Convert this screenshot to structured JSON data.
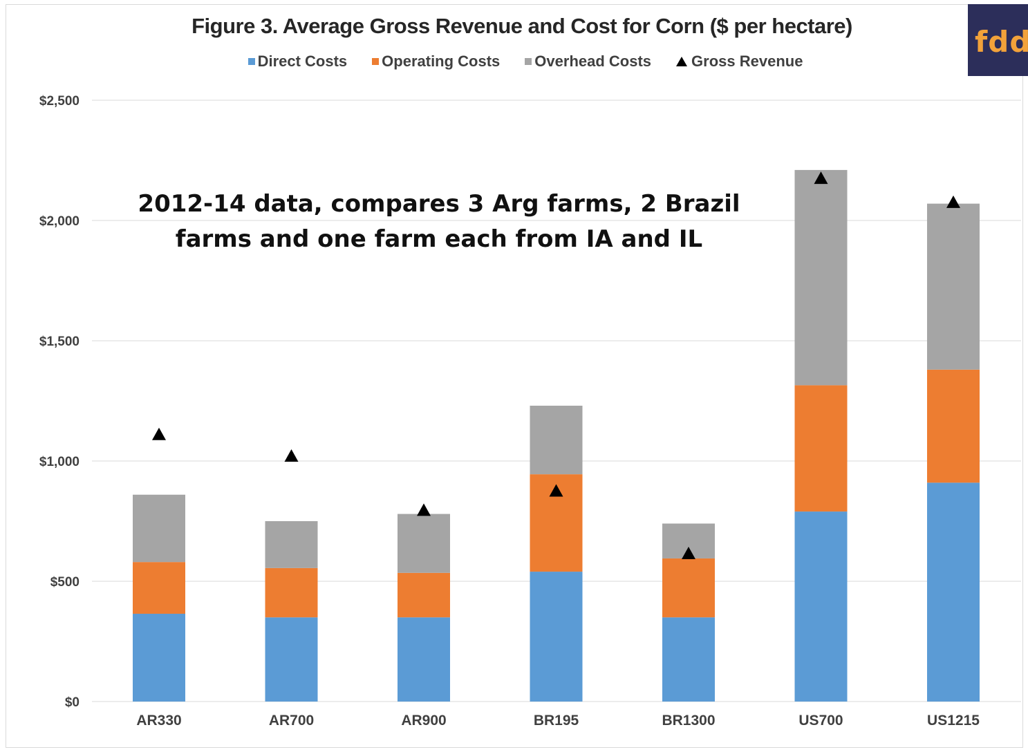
{
  "chart_data": {
    "type": "bar",
    "stacked": true,
    "title": "Figure 3. Average Gross Revenue and Cost for Corn ($ per hectare)",
    "annotation": "2012-14 data, compares 3 Arg farms, 2 Brazil farms and one farm each from IA and IL",
    "categories": [
      "AR330",
      "AR700",
      "AR900",
      "BR195",
      "BR1300",
      "US700",
      "US1215"
    ],
    "series": [
      {
        "name": "Direct Costs",
        "kind": "bar",
        "color": "#5b9bd5",
        "values": [
          365,
          350,
          350,
          540,
          350,
          790,
          910
        ]
      },
      {
        "name": "Operating Costs",
        "kind": "bar",
        "color": "#ed7d31",
        "values": [
          215,
          205,
          185,
          405,
          245,
          525,
          470
        ]
      },
      {
        "name": "Overhead Costs",
        "kind": "bar",
        "color": "#a5a5a5",
        "values": [
          280,
          195,
          245,
          285,
          145,
          895,
          690
        ]
      },
      {
        "name": "Gross Revenue",
        "kind": "marker",
        "marker": "triangle",
        "color": "#000000",
        "values": [
          1110,
          1020,
          795,
          875,
          615,
          2175,
          2075
        ]
      }
    ],
    "yaxis": {
      "ticks": [
        "$0",
        "$500",
        "$1,000",
        "$1,500",
        "$2,000",
        "$2,500"
      ],
      "tick_values": [
        0,
        500,
        1000,
        1500,
        2000,
        2500
      ],
      "ylim": [
        0,
        2500
      ]
    },
    "xlabel": "",
    "ylabel": "",
    "grid": true,
    "legend_position": "top"
  },
  "logo": {
    "text": "fdd",
    "bg_color": "#2c2e5a",
    "text_color": "#f2a23a"
  }
}
